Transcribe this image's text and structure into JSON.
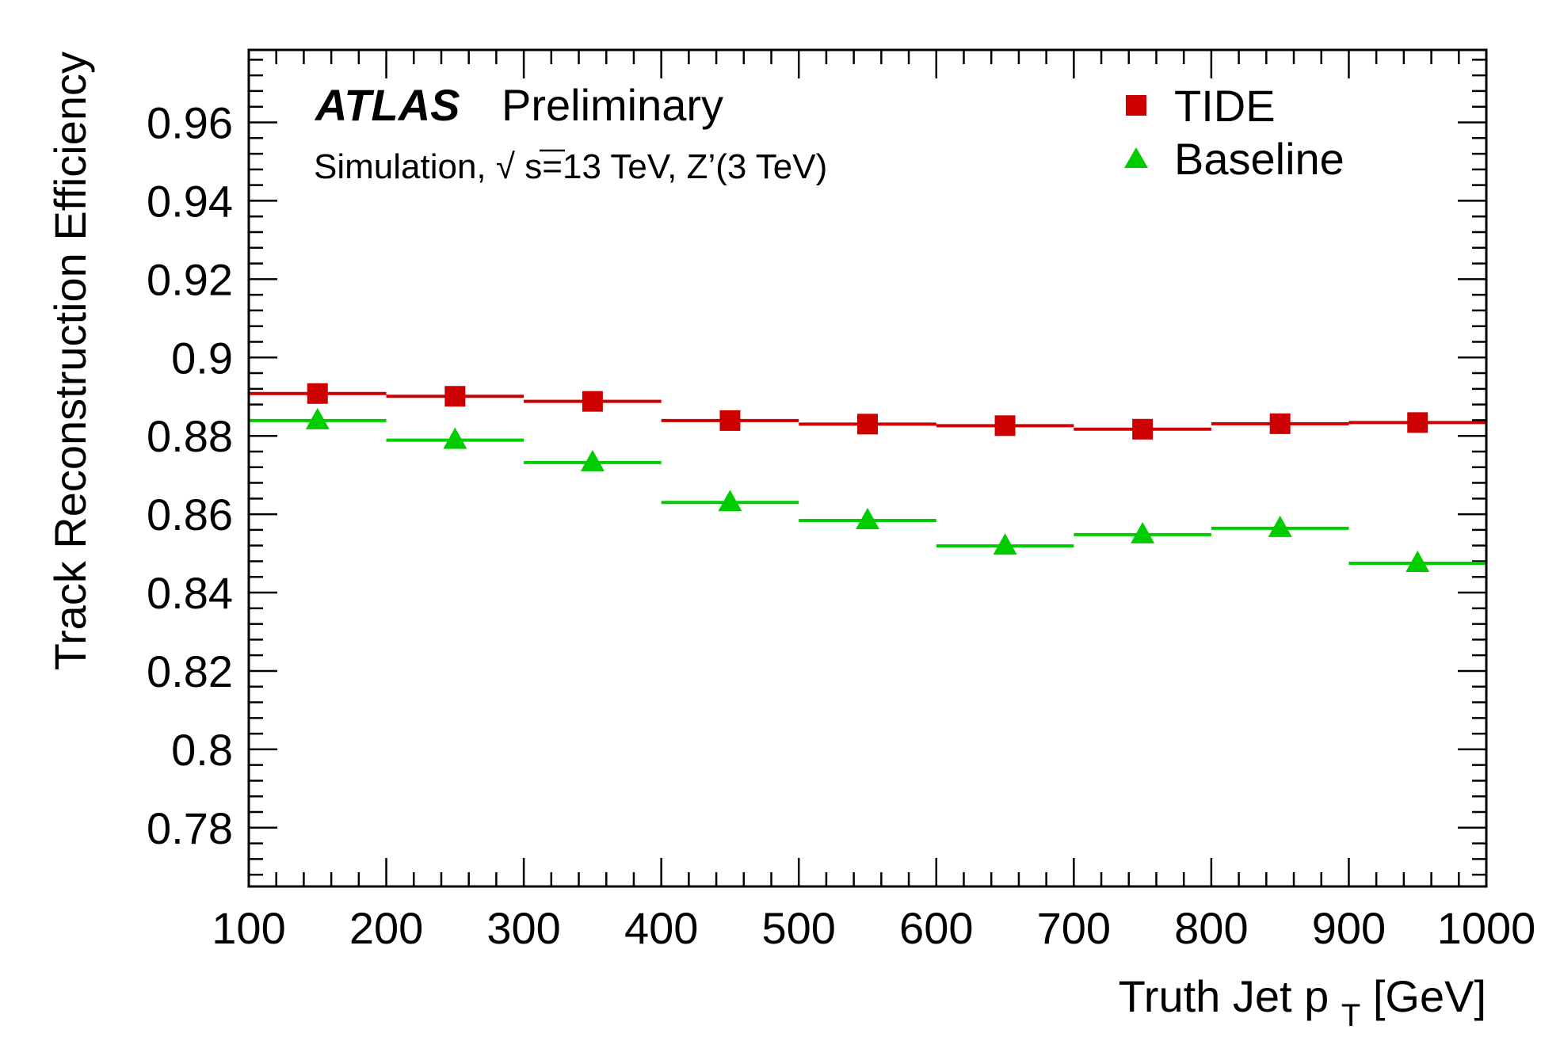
{
  "header": {
    "experiment": "ATLAS",
    "status": "Preliminary",
    "subtitle_prefix": "Simulation, ",
    "subtitle_sqrt": "√",
    "subtitle_rest": "s=13 TeV, Z’(3 TeV)"
  },
  "chart_data": {
    "type": "scatter",
    "xlabel_main": "Truth Jet p",
    "xlabel_sub": "T",
    "xlabel_unit": " [GeV]",
    "ylabel": "Track Reconstruction Efficiency",
    "xlim": [
      100,
      1000
    ],
    "ylim": [
      0.765,
      0.9785
    ],
    "x_ticks": [
      "100",
      "200",
      "300",
      "400",
      "500",
      "600",
      "700",
      "800",
      "900",
      "1000"
    ],
    "y_ticks": [
      "0.78",
      "0.8",
      "0.82",
      "0.84",
      "0.86",
      "0.88",
      "0.9",
      "0.92",
      "0.94",
      "0.96"
    ],
    "bin_edges": [
      100,
      200,
      300,
      400,
      500,
      600,
      700,
      800,
      900,
      1000
    ],
    "series": [
      {
        "name": "TIDE",
        "marker": "square",
        "color": "#cc0000",
        "x": [
          150,
          250,
          350,
          450,
          550,
          650,
          750,
          850,
          950
        ],
        "values": [
          0.8908,
          0.8901,
          0.8888,
          0.8839,
          0.883,
          0.8826,
          0.8817,
          0.8831,
          0.8834
        ],
        "errors": [
          0.0008,
          0.0008,
          0.0008,
          0.0008,
          0.0008,
          0.0008,
          0.0008,
          0.0008,
          0.0008
        ]
      },
      {
        "name": "Baseline",
        "marker": "triangle",
        "color": "#00cc00",
        "x": [
          150,
          250,
          350,
          450,
          550,
          650,
          750,
          850,
          950
        ],
        "values": [
          0.8839,
          0.8789,
          0.8732,
          0.863,
          0.8584,
          0.8519,
          0.8548,
          0.8564,
          0.8475
        ],
        "errors": [
          0.001,
          0.0012,
          0.0013,
          0.0015,
          0.0015,
          0.0016,
          0.0016,
          0.0015,
          0.0016
        ]
      }
    ],
    "legend_position": "top-right",
    "grid": false
  }
}
